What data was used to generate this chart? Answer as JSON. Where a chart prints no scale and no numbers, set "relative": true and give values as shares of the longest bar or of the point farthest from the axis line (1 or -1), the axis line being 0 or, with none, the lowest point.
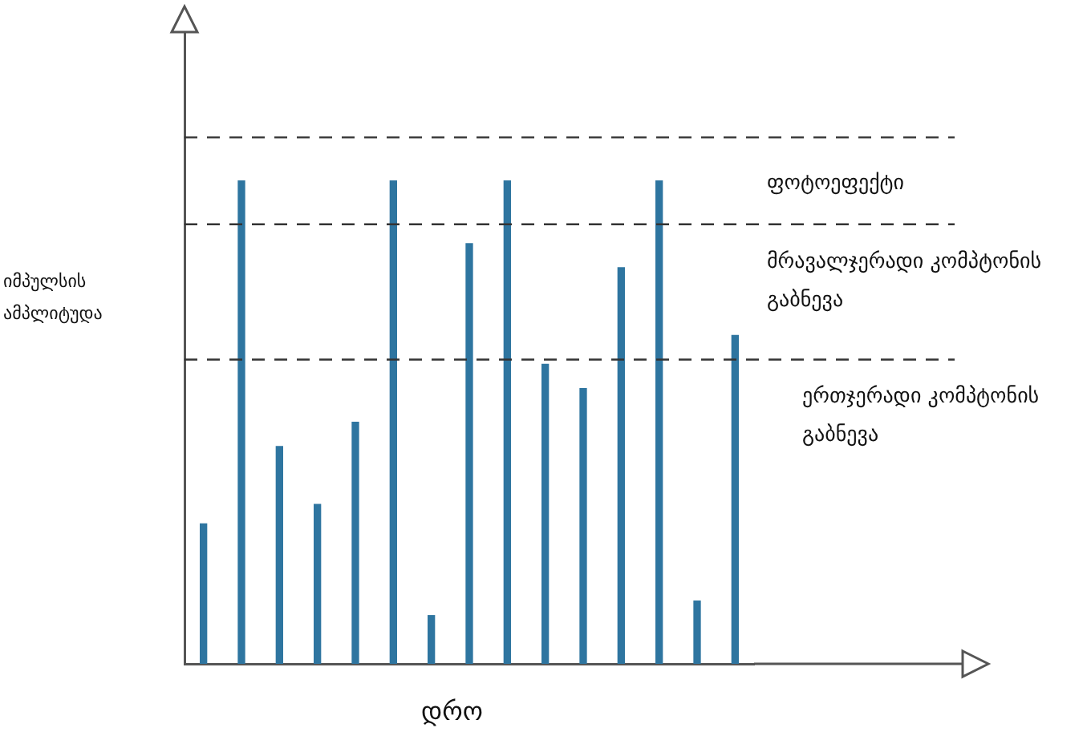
{
  "chart_data": {
    "type": "bar",
    "relative": true,
    "xlabel": "დრო",
    "ylabel": "იმპულსის ამპლიტუდა",
    "categories": [
      null,
      null,
      null,
      null,
      null,
      null,
      null,
      null,
      null,
      null,
      null,
      null,
      null,
      null,
      null
    ],
    "values": [
      0.29,
      1,
      0.45,
      0.33,
      0.5,
      1,
      0.1,
      0.87,
      1,
      0.62,
      0.57,
      0.82,
      1,
      0.13,
      0.68
    ],
    "color": "#2e75a0",
    "grid": false,
    "legend": false,
    "ref_lines": [
      {
        "axis": "y",
        "value": 1.09,
        "line_style": "dashed",
        "color": "#333333"
      },
      {
        "axis": "y",
        "value": 0.91,
        "line_style": "dashed",
        "color": "#333333"
      },
      {
        "axis": "y",
        "value": 0.63,
        "line_style": "dashed",
        "color": "#333333"
      }
    ],
    "annotations": [
      "ფოტოეფექტი",
      "მრავალჯერადი კომპტონის გაბნევა",
      "ერთჯერადი კომპტონის გაბნევა"
    ]
  }
}
